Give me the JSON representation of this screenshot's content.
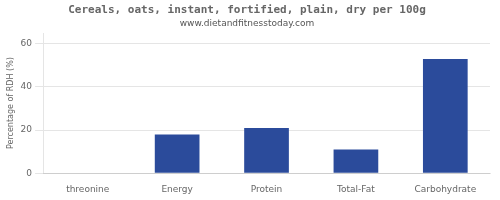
{
  "chart_data": {
    "type": "bar",
    "title": "Cereals, oats, instant, fortified, plain, dry per 100g",
    "subtitle": "www.dietandfitnesstoday.com",
    "ylabel": "Percentage of RDH (%)",
    "categories": [
      "threonine",
      "Energy",
      "Protein",
      "Total-Fat",
      "Carbohydrate"
    ],
    "values": [
      0,
      18,
      21,
      11,
      53
    ],
    "color": "#2b4b9b",
    "ylim": [
      0,
      65
    ],
    "yticks": [
      0,
      20,
      40,
      60
    ],
    "grid": true
  }
}
